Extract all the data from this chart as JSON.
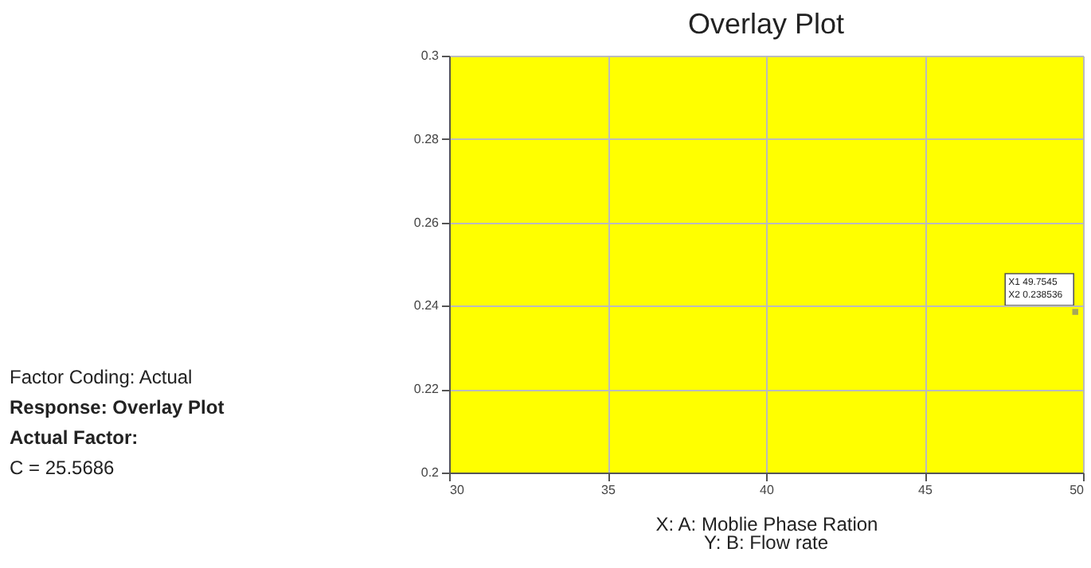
{
  "chart_data": {
    "type": "scatter",
    "title": "Overlay Plot",
    "xlabel": "X: A: Moblie Phase Ration",
    "annotations": [
      "Factor Coding: Actual",
      "Response: Overlay Plot",
      "Actual Factor:",
      "C = 25.5686",
      "Y: B: Flow rate",
      "X1 49.7545",
      "X2 0.238536"
    ],
    "x": [
      49.7545
    ],
    "series": [
      {
        "color": "#808080",
        "values": [
          0.238536
        ]
      }
    ],
    "bands": [
      {
        "axis": "x",
        "from": 30,
        "to": 50,
        "color": "#ffff00"
      }
    ],
    "marker": "square",
    "grid": true,
    "xlim": [
      30,
      50
    ],
    "xticks": [
      30,
      35,
      40,
      45,
      50
    ],
    "ylim": [
      0.2,
      0.3
    ],
    "yticks": [
      0.2,
      0.22,
      0.24,
      0.26,
      0.28,
      0.3
    ]
  }
}
